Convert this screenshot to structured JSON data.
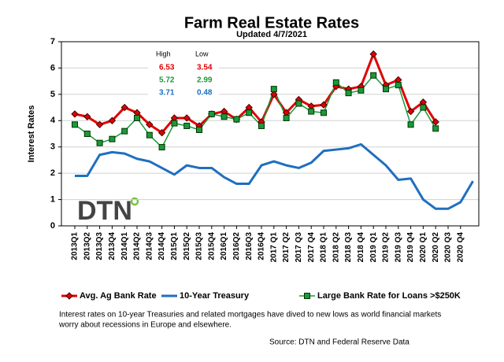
{
  "chart_data": {
    "type": "line",
    "title": "Farm Real Estate Rates",
    "subtitle": "Updated  4/7/2021",
    "y_label": "Interest Rates",
    "logo": "DTN",
    "categories": [
      "2013Q1",
      "2013Q2",
      "2013Q3",
      "2013Q4",
      "2014Q1",
      "2014Q2",
      "2014Q3",
      "2014Q4",
      "2015Q1",
      "2015Q2",
      "2015Q3",
      "2015Q4",
      "2016Q1",
      "2016Q2",
      "2016Q3",
      "2016Q4",
      "2017 Q1",
      "2017 Q2",
      "2017 Q3",
      "2017 Q4",
      "2018 Q1",
      "2018 Q2",
      "2018 Q3",
      "2018 Q4",
      "2019 Q1",
      "2019 Q2",
      "2019 Q3",
      "2019 Q4",
      "2020 Q1",
      "2020 Q2",
      "2020 Q3",
      "2020 Q4",
      null
    ],
    "series": [
      {
        "name": "Avg. Ag Bank Rate",
        "color": "#e00000",
        "marker": "diamond",
        "values": [
          4.25,
          4.15,
          3.85,
          4.0,
          4.5,
          4.3,
          3.85,
          3.54,
          4.1,
          4.1,
          3.8,
          4.25,
          4.35,
          4.05,
          4.5,
          3.95,
          5.0,
          4.3,
          4.8,
          4.55,
          4.6,
          5.3,
          5.2,
          5.3,
          6.53,
          5.35,
          5.55,
          4.35,
          4.7,
          3.95,
          null,
          null,
          null
        ]
      },
      {
        "name": "10-Year Treasury",
        "color": "#1f6fbf",
        "marker": "none",
        "values": [
          1.9,
          1.9,
          2.7,
          2.8,
          2.75,
          2.55,
          2.45,
          2.2,
          1.95,
          2.3,
          2.2,
          2.2,
          1.85,
          1.6,
          1.6,
          2.3,
          2.45,
          2.3,
          2.2,
          2.4,
          2.85,
          2.9,
          2.95,
          3.1,
          2.7,
          2.3,
          1.75,
          1.8,
          1.0,
          0.65,
          0.65,
          0.9,
          1.7
        ]
      },
      {
        "name": "Large Bank Rate for Loans >$250K",
        "color": "#1a9a3a",
        "marker": "square",
        "values": [
          3.85,
          3.5,
          3.15,
          3.3,
          3.6,
          4.1,
          3.45,
          2.99,
          3.9,
          3.8,
          3.65,
          4.25,
          4.15,
          4.05,
          4.3,
          3.8,
          5.2,
          4.1,
          4.65,
          4.35,
          4.3,
          5.45,
          5.05,
          5.15,
          5.72,
          5.2,
          5.35,
          3.85,
          4.5,
          3.7,
          null,
          null,
          null
        ]
      }
    ],
    "ylim": [
      0,
      7
    ],
    "yticks": [
      0,
      1,
      2,
      3,
      4,
      5,
      6,
      7
    ],
    "grid": true,
    "legend": "bottom",
    "high_low_table": {
      "headers": [
        "High",
        "Low"
      ],
      "rows": [
        {
          "high": 6.53,
          "low": 3.54
        },
        {
          "high": 5.72,
          "low": 2.99
        },
        {
          "high": 3.71,
          "low": 0.48
        }
      ]
    },
    "note": [
      "Interest rates on 10-year Treasuries and related mortgages have dived to new lows as world financial markets",
      "worry about recessions in Europe and elsewhere."
    ],
    "source": "Source: DTN and Federal Reserve Data"
  }
}
